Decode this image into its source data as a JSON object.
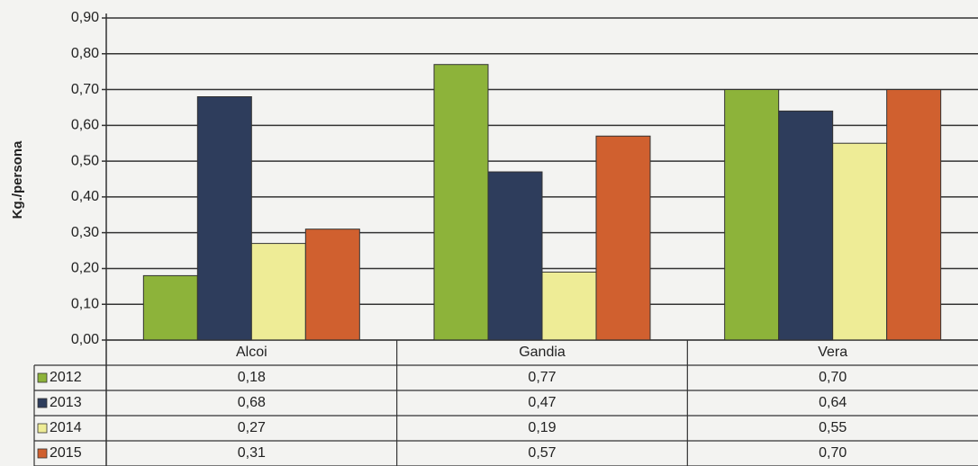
{
  "chart_data": {
    "type": "bar",
    "y_label": "Kg./persona",
    "categories": [
      "Alcoi",
      "Gandia",
      "Vera"
    ],
    "series": [
      {
        "name": "2012",
        "color": "#8db33a",
        "values": [
          0.18,
          0.77,
          0.7
        ],
        "value_labels": [
          "0,18",
          "0,77",
          "0,70"
        ]
      },
      {
        "name": "2013",
        "color": "#2e3d5c",
        "values": [
          0.68,
          0.47,
          0.64
        ],
        "value_labels": [
          "0,68",
          "0,47",
          "0,64"
        ]
      },
      {
        "name": "2014",
        "color": "#eeec96",
        "values": [
          0.27,
          0.19,
          0.55
        ],
        "value_labels": [
          "0,27",
          "0,19",
          "0,55"
        ]
      },
      {
        "name": "2015",
        "color": "#d0602f",
        "values": [
          0.31,
          0.57,
          0.7
        ],
        "value_labels": [
          "0,31",
          "0,57",
          "0,70"
        ]
      }
    ],
    "ylim": [
      0,
      0.9
    ],
    "yticks": [
      {
        "value": 0,
        "label": "0,00"
      },
      {
        "value": 0.1,
        "label": "0,10"
      },
      {
        "value": 0.2,
        "label": "0,20"
      },
      {
        "value": 0.3,
        "label": "0,30"
      },
      {
        "value": 0.4,
        "label": "0,40"
      },
      {
        "value": 0.5,
        "label": "0,50"
      },
      {
        "value": 0.6,
        "label": "0,60"
      },
      {
        "value": 0.7,
        "label": "0,70"
      },
      {
        "value": 0.8,
        "label": "0,80"
      },
      {
        "value": 0.9,
        "label": "0,90"
      }
    ],
    "grid": true
  }
}
